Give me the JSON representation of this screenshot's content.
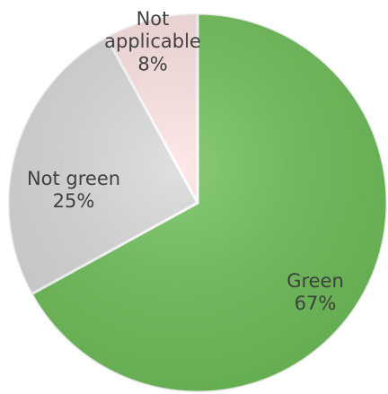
{
  "chart_data": {
    "type": "pie",
    "title": "",
    "start_angle_deg": 0,
    "direction": "clockwise",
    "slices": [
      {
        "label": "Green",
        "value": 67,
        "value_label": "67%",
        "color": "#70c05a",
        "edge": "#4a9a3c"
      },
      {
        "label": "Not green",
        "value": 25,
        "value_label": "25%",
        "color": "#d9d9d9",
        "edge": "#a6a6a6"
      },
      {
        "label": "Not applicable",
        "value": 8,
        "value_label": "8%",
        "color": "#fde2e2",
        "edge": "#e0b0b0"
      }
    ],
    "legend": "none",
    "data_labels": "inside"
  }
}
